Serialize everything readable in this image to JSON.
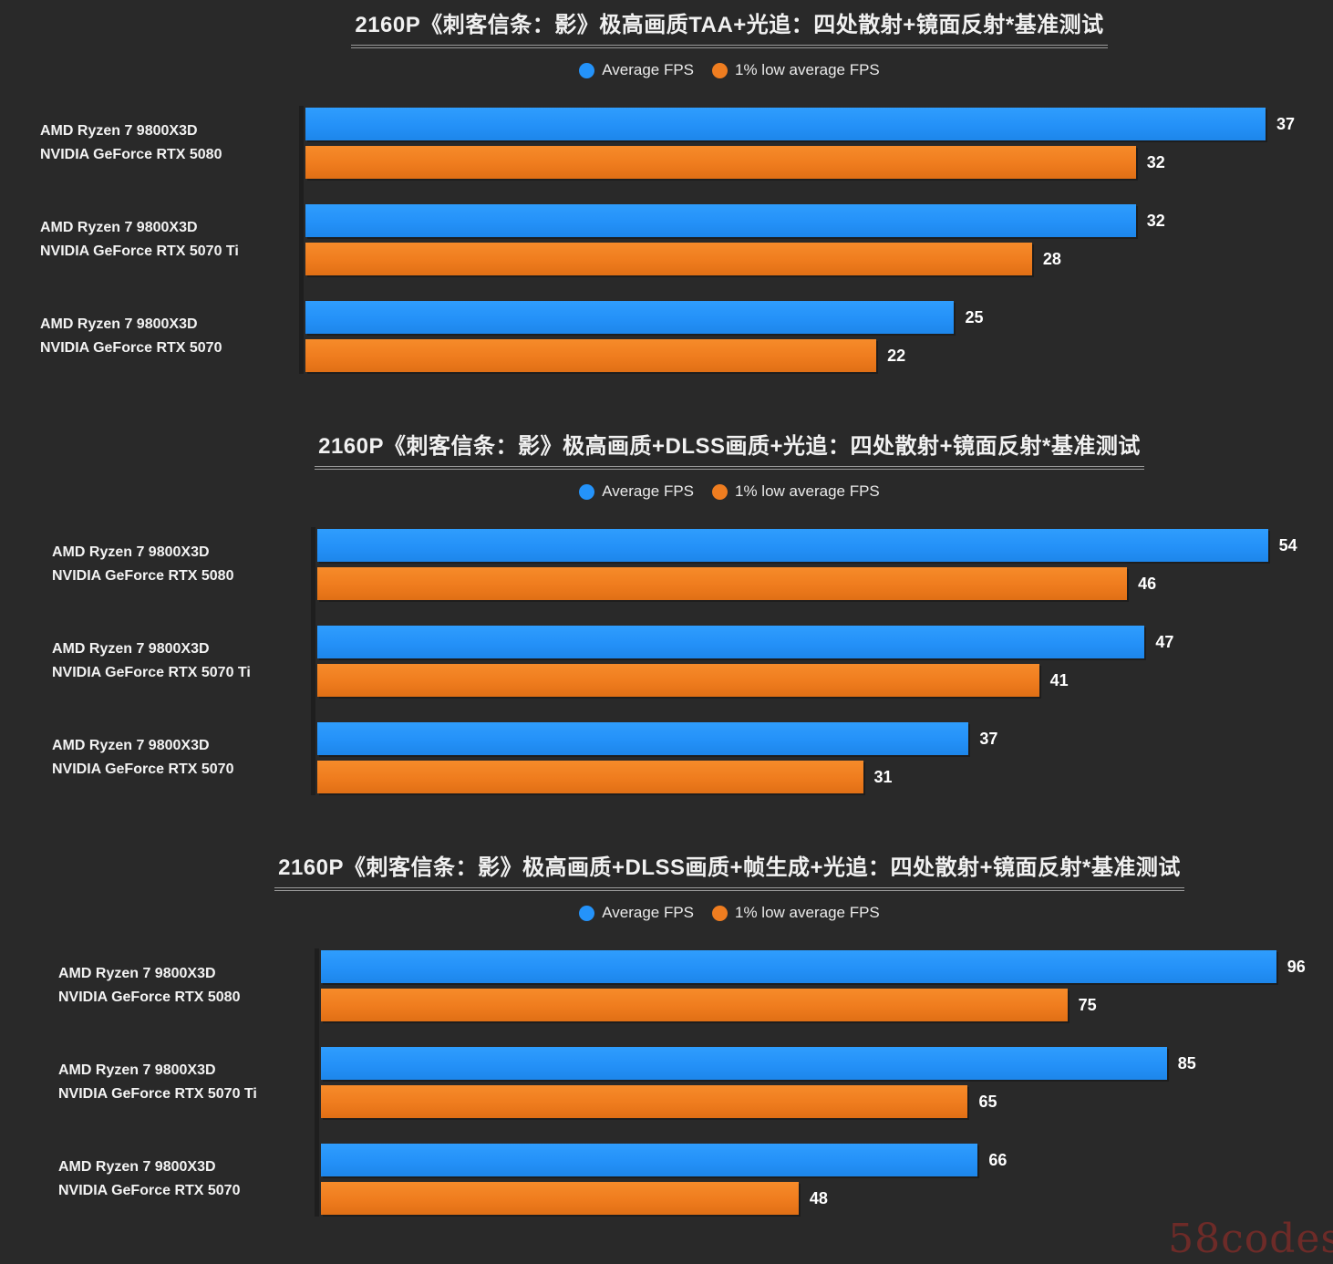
{
  "watermark": {
    "text": "58codes",
    "color": "#6d2b28"
  },
  "colors": {
    "avg": "#2493fa",
    "low": "#ef7d20",
    "background": "#292929",
    "title_underline": "#9a9a9a"
  },
  "chart_data": [
    {
      "type": "bar",
      "orientation": "horizontal",
      "title": "2160P《刺客信条：影》极高画质TAA+光追：四处散射+镜面反射*基准测试",
      "legend_position": "top-center",
      "grid": false,
      "xlim": [
        0,
        39.6
      ],
      "legend": [
        {
          "label": "Average FPS",
          "color": "#2493fa"
        },
        {
          "label": "1% low average FPS",
          "color": "#ef7d20"
        }
      ],
      "rows": [
        {
          "cpu": "AMD Ryzen 7 9800X3D",
          "gpu": "NVIDIA GeForce RTX 5080",
          "avg": 37,
          "low": 32
        },
        {
          "cpu": "AMD Ryzen 7 9800X3D",
          "gpu": "NVIDIA GeForce RTX 5070 Ti",
          "avg": 32,
          "low": 28
        },
        {
          "cpu": "AMD Ryzen 7 9800X3D",
          "gpu": "NVIDIA GeForce RTX 5070",
          "avg": 25,
          "low": 22
        }
      ]
    },
    {
      "type": "bar",
      "orientation": "horizontal",
      "title": "2160P《刺客信条：影》极高画质+DLSS画质+光追：四处散射+镜面反射*基准测试",
      "legend_position": "top-center",
      "grid": false,
      "xlim": [
        0,
        57.7
      ],
      "legend": [
        {
          "label": "Average FPS",
          "color": "#2493fa"
        },
        {
          "label": "1% low average FPS",
          "color": "#ef7d20"
        }
      ],
      "rows": [
        {
          "cpu": "AMD Ryzen 7 9800X3D",
          "gpu": "NVIDIA GeForce RTX 5080",
          "avg": 54,
          "low": 46
        },
        {
          "cpu": "AMD Ryzen 7 9800X3D",
          "gpu": "NVIDIA GeForce RTX 5070 Ti",
          "avg": 47,
          "low": 41
        },
        {
          "cpu": "AMD Ryzen 7 9800X3D",
          "gpu": "NVIDIA GeForce RTX 5070",
          "avg": 37,
          "low": 31
        }
      ]
    },
    {
      "type": "bar",
      "orientation": "horizontal",
      "title": "2160P《刺客信条：影》极高画质+DLSS画质+帧生成+光追：四处散射+镜面反射*基准测试",
      "legend_position": "top-center",
      "grid": false,
      "xlim": [
        0,
        101.7
      ],
      "legend": [
        {
          "label": "Average FPS",
          "color": "#2493fa"
        },
        {
          "label": "1% low average FPS",
          "color": "#ef7d20"
        }
      ],
      "rows": [
        {
          "cpu": "AMD Ryzen 7 9800X3D",
          "gpu": "NVIDIA GeForce RTX 5080",
          "avg": 96,
          "low": 75
        },
        {
          "cpu": "AMD Ryzen 7 9800X3D",
          "gpu": "NVIDIA GeForce RTX 5070 Ti",
          "avg": 85,
          "low": 65
        },
        {
          "cpu": "AMD Ryzen 7 9800X3D",
          "gpu": "NVIDIA GeForce RTX 5070",
          "avg": 66,
          "low": 48
        }
      ]
    }
  ]
}
